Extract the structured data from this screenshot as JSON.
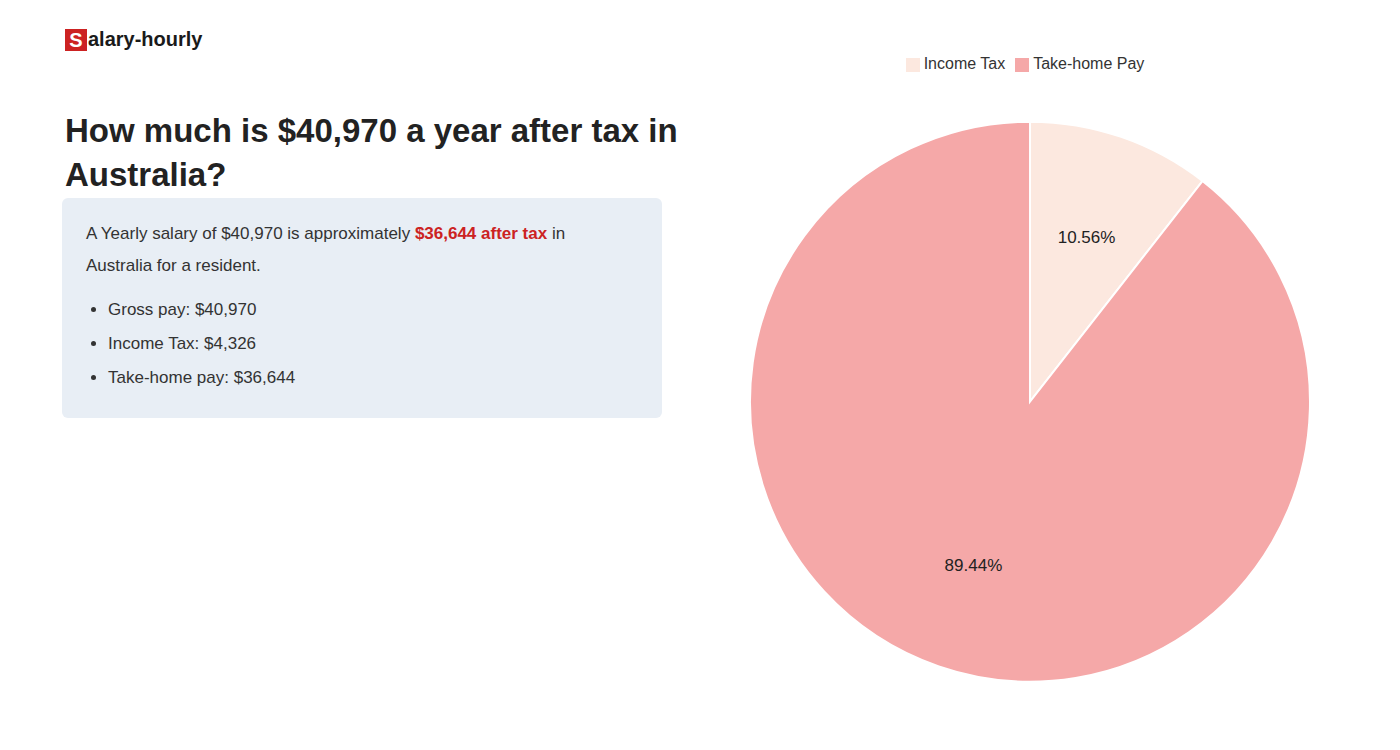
{
  "chart_data": {
    "type": "pie",
    "title": "How much is $40,970 a year after tax in\nAustralia?",
    "annotations": {
      "logo": {
        "text": "Salary-hourly",
        "color": "#cc2222"
      },
      "box": {
        "color": "#e8eef5",
        "lines": [
          [
            {
              "text": "A Yearly salary of $40,970 is approximately "
            },
            {
              "text": "$36,644 after tax",
              "color": "#cc2222"
            },
            {
              "text": " in"
            }
          ],
          [
            {
              "text": "Australia for a resident."
            }
          ]
        ],
        "bullets": [
          "Gross pay: $40,970",
          "Income Tax: $4,326",
          "Take-home pay: $36,644"
        ]
      }
    },
    "categories": [
      "Income Tax",
      "Take-home Pay"
    ],
    "values": [
      10.56,
      89.44
    ],
    "value_labels": [
      "10.56%",
      "89.44%"
    ],
    "colors": [
      "#fce8df",
      "#f5a8a8"
    ],
    "data_labels": true,
    "legend": "top"
  }
}
